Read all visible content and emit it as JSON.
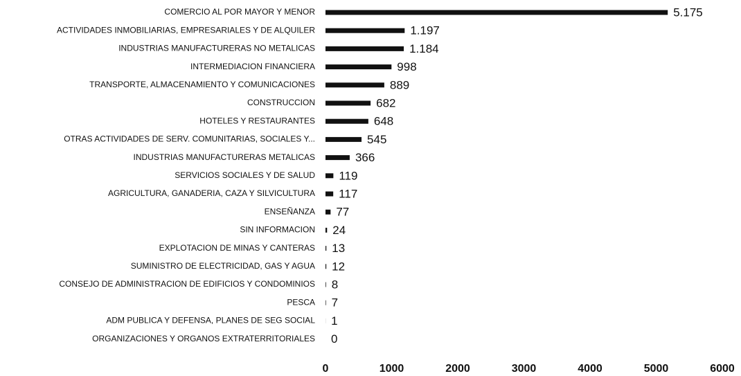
{
  "chart_data": {
    "type": "hbar",
    "categories": [
      "COMERCIO AL POR MAYOR Y MENOR",
      "ACTIVIDADES INMOBILIARIAS, EMPRESARIALES Y DE ALQUILER",
      "INDUSTRIAS MANUFACTURERAS NO METALICAS",
      "INTERMEDIACION FINANCIERA",
      "TRANSPORTE, ALMACENAMIENTO Y COMUNICACIONES",
      "CONSTRUCCION",
      "HOTELES Y RESTAURANTES",
      "OTRAS ACTIVIDADES DE SERV. COMUNITARIAS, SOCIALES Y...",
      "INDUSTRIAS MANUFACTURERAS METALICAS",
      "SERVICIOS SOCIALES Y DE SALUD",
      "AGRICULTURA, GANADERIA, CAZA Y SILVICULTURA",
      "ENSEÑANZA",
      "SIN INFORMACION",
      "EXPLOTACION DE MINAS Y CANTERAS",
      "SUMINISTRO DE ELECTRICIDAD, GAS Y AGUA",
      "CONSEJO DE ADMINISTRACION DE EDIFICIOS Y CONDOMINIOS",
      "PESCA",
      "ADM PUBLICA Y DEFENSA, PLANES DE SEG SOCIAL",
      "ORGANIZACIONES Y ORGANOS EXTRATERRITORIALES"
    ],
    "values": [
      5175,
      1197,
      1184,
      998,
      889,
      682,
      648,
      545,
      366,
      119,
      117,
      77,
      24,
      13,
      12,
      8,
      7,
      1,
      0
    ],
    "value_labels": [
      "5.175",
      "1.197",
      "1.184",
      "998",
      "889",
      "682",
      "648",
      "545",
      "366",
      "119",
      "117",
      "77",
      "24",
      "13",
      "12",
      "8",
      "7",
      "1",
      "0"
    ],
    "color": "#111111",
    "xlim": [
      0,
      6000
    ],
    "xticks": [
      0,
      1000,
      2000,
      3000,
      4000,
      5000,
      6000
    ],
    "grid": false
  }
}
